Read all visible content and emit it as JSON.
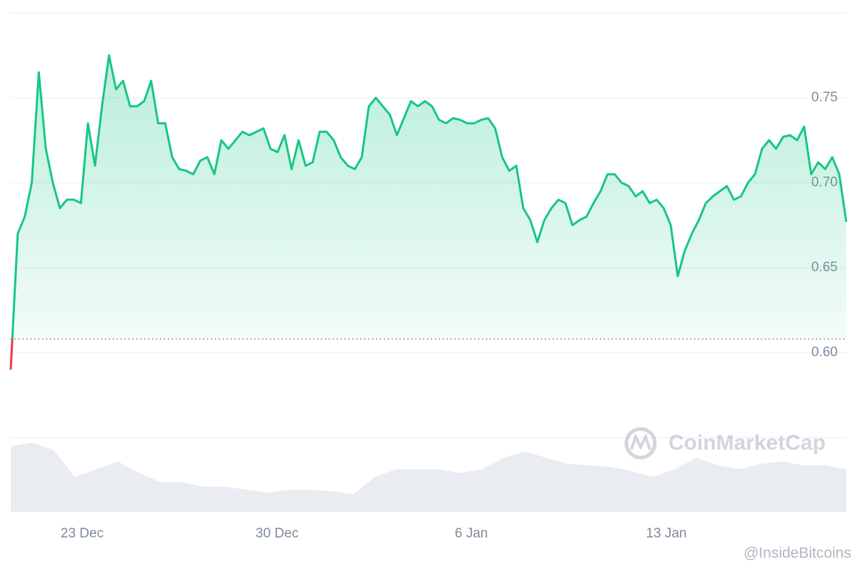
{
  "chart_data": {
    "type": "line",
    "color": "#16c784",
    "down_color": "#ea3943",
    "reference_line": 0.608,
    "ylim": [
      0.55,
      0.8
    ],
    "yticks": [
      {
        "value": 0.6,
        "label": "0.60"
      },
      0.65,
      {
        "value": 0.7,
        "label": "0.70"
      },
      0.75
    ],
    "xlim": [
      0,
      119
    ],
    "xticks": [
      {
        "value": 10.17,
        "label": "23 Dec"
      },
      {
        "value": 37.94,
        "label": "30 Dec"
      },
      {
        "value": 65.6,
        "label": "6 Jan"
      },
      {
        "value": 93.37,
        "label": "13 Jan"
      }
    ],
    "grid": true,
    "series": [
      {
        "values": [
          0.59,
          0.67,
          0.68,
          0.7,
          0.765,
          0.72,
          0.7,
          0.685,
          0.69,
          0.69,
          0.688,
          0.735,
          0.71,
          0.745,
          0.775,
          0.755,
          0.76,
          0.745,
          0.745,
          0.748,
          0.76,
          0.735,
          0.735,
          0.715,
          0.708,
          0.707,
          0.705,
          0.713,
          0.715,
          0.705,
          0.725,
          0.72,
          0.725,
          0.73,
          0.728,
          0.73,
          0.732,
          0.72,
          0.718,
          0.728,
          0.708,
          0.725,
          0.71,
          0.712,
          0.73,
          0.73,
          0.725,
          0.715,
          0.71,
          0.708,
          0.715,
          0.745,
          0.75,
          0.745,
          0.74,
          0.728,
          0.738,
          0.748,
          0.745,
          0.748,
          0.745,
          0.737,
          0.735,
          0.738,
          0.737,
          0.735,
          0.735,
          0.737,
          0.738,
          0.732,
          0.715,
          0.707,
          0.71,
          0.685,
          0.678,
          0.665,
          0.678,
          0.685,
          0.69,
          0.688,
          0.675,
          0.678,
          0.68,
          0.688,
          0.695,
          0.705,
          0.705,
          0.7,
          0.698,
          0.692,
          0.695,
          0.688,
          0.69,
          0.685,
          0.675,
          0.645,
          0.66,
          0.67,
          0.678,
          0.688,
          0.692,
          0.695,
          0.698,
          0.69,
          0.692,
          0.7,
          0.705,
          0.72,
          0.725,
          0.72,
          0.727,
          0.728,
          0.725,
          0.733,
          0.705,
          0.712,
          0.708,
          0.715,
          0.705,
          0.677
        ]
      }
    ],
    "volume": {
      "color": "#e9ecf1",
      "values": [
        85,
        90,
        80,
        45,
        55,
        65,
        50,
        38,
        38,
        32,
        32,
        28,
        24,
        28,
        28,
        26,
        22,
        45,
        55,
        55,
        55,
        50,
        55,
        70,
        78,
        70,
        62,
        60,
        58,
        52,
        45,
        55,
        70,
        60,
        55,
        62,
        65,
        60,
        60,
        55
      ]
    },
    "annotations": [
      "CoinMarketCap",
      "@InsideBitcoins"
    ]
  }
}
